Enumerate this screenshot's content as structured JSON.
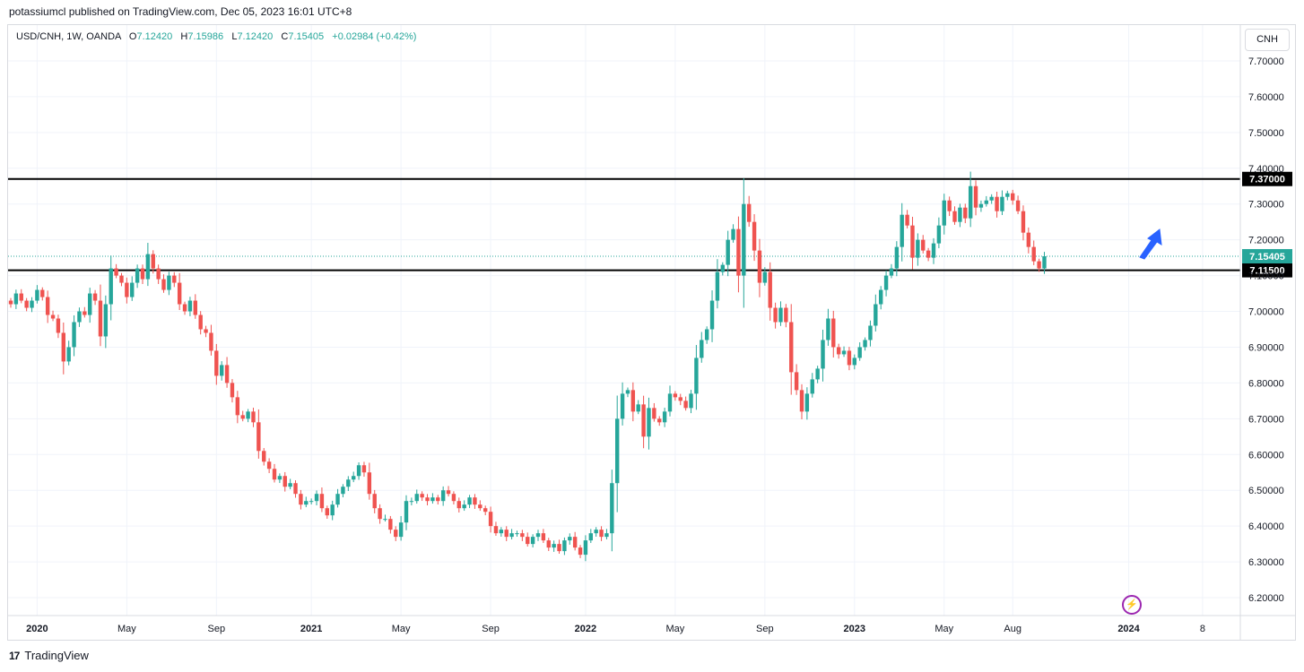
{
  "header": {
    "text": "potassiumcl published on TradingView.com, Dec 05, 2023 16:01 UTC+8"
  },
  "legend": {
    "symbol": "USD/CNH, 1W, OANDA",
    "o_label": "O",
    "o_value": "7.12420",
    "h_label": "H",
    "h_value": "7.15986",
    "l_label": "L",
    "l_value": "7.12420",
    "c_label": "C",
    "c_value": "7.15405",
    "change": "+0.02984 (+0.42%)"
  },
  "currency": "CNH",
  "footer": {
    "logo": "17",
    "brand": "TradingView"
  },
  "icons": {
    "logo": "tradingview-logo-icon",
    "bolt": "lightning-icon",
    "arrow": "up-arrow-icon"
  },
  "colors": {
    "up": "#26a69a",
    "down": "#ef5350",
    "level_line": "#000000",
    "arrow": "#2962ff",
    "last_price": "#26a69a"
  },
  "chart_data": {
    "type": "candlestick",
    "symbol": "USD/CNH",
    "timeframe": "1W",
    "ylim": [
      6.15,
      7.8
    ],
    "y_ticks": [
      "6.20000",
      "6.30000",
      "6.40000",
      "6.50000",
      "6.60000",
      "6.70000",
      "6.80000",
      "6.90000",
      "7.00000",
      "7.10000",
      "7.20000",
      "7.30000",
      "7.40000",
      "7.50000",
      "7.60000",
      "7.70000"
    ],
    "x_ticks": [
      {
        "label": "2020",
        "bold": true,
        "week": 5
      },
      {
        "label": "May",
        "bold": false,
        "week": 22
      },
      {
        "label": "Sep",
        "bold": false,
        "week": 39
      },
      {
        "label": "2021",
        "bold": true,
        "week": 57
      },
      {
        "label": "May",
        "bold": false,
        "week": 74
      },
      {
        "label": "Sep",
        "bold": false,
        "week": 91
      },
      {
        "label": "2022",
        "bold": true,
        "week": 109
      },
      {
        "label": "May",
        "bold": false,
        "week": 126
      },
      {
        "label": "Sep",
        "bold": false,
        "week": 143
      },
      {
        "label": "2023",
        "bold": true,
        "week": 160
      },
      {
        "label": "May",
        "bold": false,
        "week": 177
      },
      {
        "label": "Aug",
        "bold": false,
        "week": 190
      },
      {
        "label": "2024",
        "bold": true,
        "week": 212
      },
      {
        "label": "8",
        "bold": false,
        "week": 226
      }
    ],
    "horizontal_levels": [
      {
        "value": 7.37,
        "label": "7.37000"
      },
      {
        "value": 7.115,
        "label": "7.11500"
      }
    ],
    "last_price": {
      "value": 7.15405,
      "label": "7.15405"
    },
    "closes": [
      7.02,
      7.05,
      7.03,
      7.01,
      7.03,
      7.06,
      7.04,
      6.99,
      6.98,
      6.94,
      6.86,
      6.9,
      6.97,
      7.0,
      6.99,
      7.05,
      7.03,
      6.93,
      7.02,
      7.12,
      7.1,
      7.08,
      7.04,
      7.08,
      7.12,
      7.09,
      7.16,
      7.12,
      7.09,
      7.06,
      7.1,
      7.08,
      7.02,
      7.0,
      7.03,
      6.99,
      6.95,
      6.94,
      6.89,
      6.82,
      6.85,
      6.8,
      6.76,
      6.71,
      6.7,
      6.72,
      6.69,
      6.61,
      6.58,
      6.56,
      6.53,
      6.54,
      6.51,
      6.52,
      6.49,
      6.46,
      6.47,
      6.47,
      6.49,
      6.45,
      6.43,
      6.46,
      6.49,
      6.51,
      6.53,
      6.54,
      6.57,
      6.55,
      6.49,
      6.45,
      6.42,
      6.42,
      6.39,
      6.37,
      6.41,
      6.47,
      6.47,
      6.49,
      6.48,
      6.47,
      6.48,
      6.47,
      6.5,
      6.49,
      6.47,
      6.45,
      6.46,
      6.48,
      6.46,
      6.45,
      6.44,
      6.4,
      6.38,
      6.39,
      6.37,
      6.38,
      6.38,
      6.37,
      6.35,
      6.37,
      6.38,
      6.36,
      6.34,
      6.35,
      6.33,
      6.36,
      6.37,
      6.34,
      6.32,
      6.36,
      6.38,
      6.39,
      6.37,
      6.38,
      6.52,
      6.7,
      6.77,
      6.78,
      6.72,
      6.74,
      6.65,
      6.73,
      6.7,
      6.69,
      6.72,
      6.77,
      6.76,
      6.75,
      6.73,
      6.77,
      6.87,
      6.92,
      6.95,
      7.03,
      7.11,
      7.13,
      7.2,
      7.23,
      7.1,
      7.3,
      7.25,
      7.17,
      7.08,
      7.11,
      7.01,
      6.97,
      7.01,
      6.97,
      6.83,
      6.78,
      6.72,
      6.77,
      6.81,
      6.84,
      6.92,
      6.98,
      6.9,
      6.88,
      6.89,
      6.85,
      6.87,
      6.9,
      6.92,
      6.96,
      7.02,
      7.06,
      7.1,
      7.12,
      7.18,
      7.27,
      7.24,
      7.15,
      7.2,
      7.17,
      7.15,
      7.19,
      7.24,
      7.31,
      7.28,
      7.25,
      7.29,
      7.26,
      7.35,
      7.29,
      7.3,
      7.31,
      7.32,
      7.28,
      7.32,
      7.33,
      7.31,
      7.28,
      7.22,
      7.18,
      7.14,
      7.12,
      7.154
    ]
  }
}
